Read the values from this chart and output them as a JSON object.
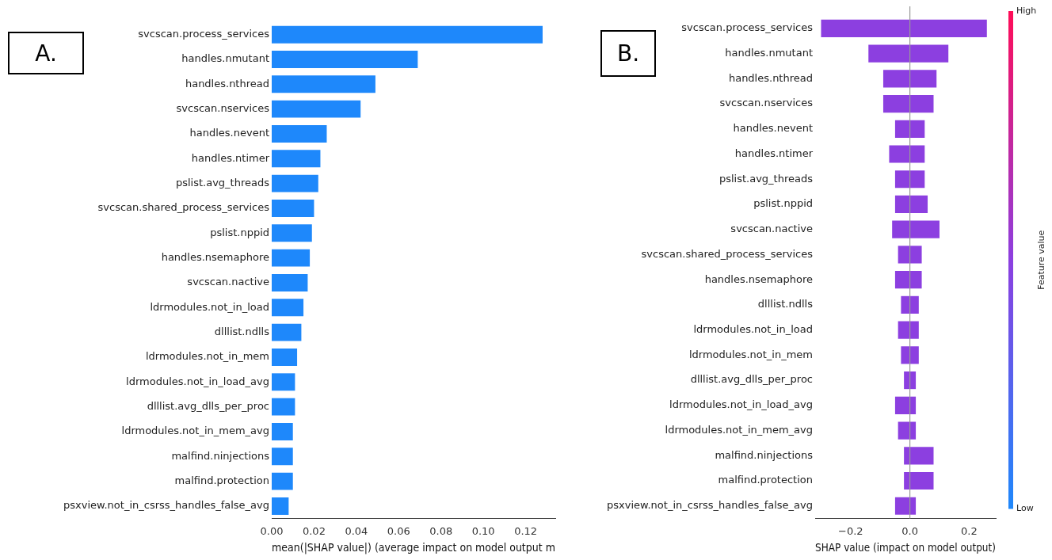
{
  "chart_data": [
    {
      "type": "bar",
      "orientation": "horizontal",
      "annotations": [
        "A."
      ],
      "xlabel": "mean(|SHAP value|) (average impact on model output m",
      "categories": [
        "svcscan.process_services",
        "handles.nmutant",
        "handles.nthread",
        "svcscan.nservices",
        "handles.nevent",
        "handles.ntimer",
        "pslist.avg_threads",
        "svcscan.shared_process_services",
        "pslist.nppid",
        "handles.nsemaphore",
        "svcscan.nactive",
        "ldrmodules.not_in_load",
        "dlllist.ndlls",
        "ldrmodules.not_in_mem",
        "ldrmodules.not_in_load_avg",
        "dlllist.avg_dlls_per_proc",
        "ldrmodules.not_in_mem_avg",
        "malfind.ninjections",
        "malfind.protection",
        "psxview.not_in_csrss_handles_false_avg"
      ],
      "values": [
        0.128,
        0.069,
        0.049,
        0.042,
        0.026,
        0.023,
        0.022,
        0.02,
        0.019,
        0.018,
        0.017,
        0.015,
        0.014,
        0.012,
        0.011,
        0.011,
        0.01,
        0.01,
        0.01,
        0.008
      ],
      "color": "#1e88fb",
      "xlim": [
        0,
        0.134
      ],
      "xticks": [
        {
          "value": 0,
          "label": "0.00"
        },
        {
          "value": 0.02,
          "label": "0.02"
        },
        {
          "value": 0.04,
          "label": "0.04"
        },
        {
          "value": 0.06,
          "label": "0.06"
        },
        {
          "value": 0.08,
          "label": "0.08"
        },
        {
          "value": 0.1,
          "label": "0.10"
        },
        {
          "value": 0.12,
          "label": "0.12"
        }
      ],
      "grid": false,
      "legend": false
    },
    {
      "type": "bar",
      "orientation": "horizontal",
      "annotations": [
        "B."
      ],
      "xlabel": "SHAP value (impact on model output)",
      "clabel": "Feature value",
      "categories": [
        "svcscan.process_services",
        "handles.nmutant",
        "handles.nthread",
        "svcscan.nservices",
        "handles.nevent",
        "handles.ntimer",
        "pslist.avg_threads",
        "pslist.nppid",
        "svcscan.nactive",
        "svcscan.shared_process_services",
        "handles.nsemaphore",
        "dlllist.ndlls",
        "ldrmodules.not_in_load",
        "ldrmodules.not_in_mem",
        "dlllist.avg_dlls_per_proc",
        "ldrmodules.not_in_load_avg",
        "ldrmodules.not_in_mem_avg",
        "malfind.ninjections",
        "malfind.protection",
        "psxview.not_in_csrss_handles_false_avg"
      ],
      "base": [
        -0.3,
        -0.14,
        -0.09,
        -0.09,
        -0.05,
        -0.07,
        -0.05,
        -0.05,
        -0.06,
        -0.04,
        -0.05,
        -0.03,
        -0.04,
        -0.03,
        -0.02,
        -0.05,
        -0.04,
        -0.02,
        -0.02,
        -0.05
      ],
      "values": [
        0.56,
        0.27,
        0.18,
        0.17,
        0.1,
        0.12,
        0.1,
        0.11,
        0.16,
        0.08,
        0.09,
        0.06,
        0.07,
        0.06,
        0.04,
        0.07,
        0.06,
        0.1,
        0.1,
        0.07
      ],
      "color": "#8c3fe0",
      "xlim": [
        -0.32,
        0.29
      ],
      "xticks": [
        {
          "value": -0.2,
          "label": "−0.2"
        },
        {
          "value": 0,
          "label": "0.0"
        },
        {
          "value": 0.2,
          "label": "0.2"
        }
      ],
      "ref_lines": [
        {
          "axis": "x",
          "value": 0,
          "color": "#999999"
        }
      ],
      "clim": [
        0,
        1
      ],
      "cticks": [
        {
          "value": 0,
          "label": "Low"
        },
        {
          "value": 1,
          "label": "High"
        }
      ],
      "grid": false,
      "legend": false
    }
  ]
}
